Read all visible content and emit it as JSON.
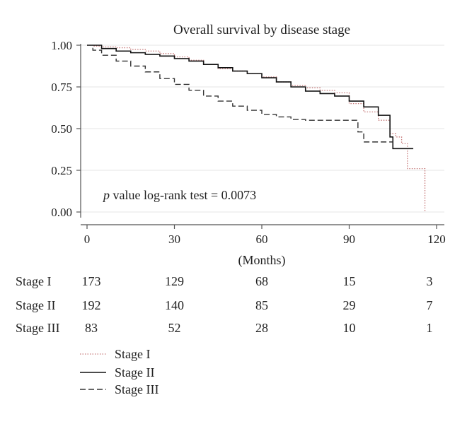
{
  "chart_data": {
    "type": "line",
    "title": "Overall survival by disease stage",
    "xlabel": "(Months)",
    "ylabel": "",
    "xlim": [
      0,
      120
    ],
    "ylim": [
      0,
      1
    ],
    "x_ticks": [
      "0",
      "30",
      "60",
      "90",
      "120"
    ],
    "y_ticks": [
      "0.00",
      "0.25",
      "0.50",
      "0.75",
      "1.00"
    ],
    "grid": true,
    "annotation": {
      "italic": "p",
      "text": " value log-rank test = 0.0073"
    },
    "colors": {
      "stage_i": "#c77a7a",
      "stage_ii": "#111111",
      "stage_iii": "#333333",
      "grid": "#e6e6e6",
      "axis": "#555555"
    },
    "series": [
      {
        "name": "Stage I",
        "style": "dotted",
        "x": [
          0,
          2,
          5,
          10,
          15,
          20,
          25,
          30,
          35,
          40,
          45,
          50,
          55,
          60,
          65,
          70,
          75,
          80,
          85,
          90,
          95,
          100,
          104,
          106,
          108,
          110,
          116,
          116
        ],
        "y": [
          1.0,
          0.995,
          0.99,
          0.985,
          0.975,
          0.965,
          0.95,
          0.93,
          0.91,
          0.885,
          0.86,
          0.845,
          0.83,
          0.81,
          0.78,
          0.76,
          0.745,
          0.73,
          0.715,
          0.65,
          0.6,
          0.55,
          0.47,
          0.45,
          0.41,
          0.26,
          0.26,
          0.0
        ]
      },
      {
        "name": "Stage II",
        "style": "solid",
        "x": [
          0,
          5,
          10,
          15,
          20,
          25,
          30,
          35,
          40,
          45,
          50,
          55,
          60,
          65,
          70,
          75,
          80,
          85,
          90,
          95,
          100,
          103,
          104,
          105,
          112
        ],
        "y": [
          1.0,
          0.98,
          0.965,
          0.955,
          0.945,
          0.935,
          0.92,
          0.905,
          0.885,
          0.865,
          0.845,
          0.83,
          0.805,
          0.78,
          0.75,
          0.725,
          0.71,
          0.695,
          0.665,
          0.63,
          0.58,
          0.58,
          0.45,
          0.38,
          0.38
        ]
      },
      {
        "name": "Stage III",
        "style": "dashed",
        "x": [
          0,
          2,
          5,
          10,
          15,
          20,
          25,
          30,
          35,
          40,
          45,
          50,
          55,
          60,
          65,
          70,
          75,
          80,
          85,
          90,
          93,
          95,
          105
        ],
        "y": [
          1.0,
          0.97,
          0.94,
          0.905,
          0.875,
          0.84,
          0.8,
          0.765,
          0.73,
          0.695,
          0.665,
          0.635,
          0.61,
          0.585,
          0.57,
          0.555,
          0.55,
          0.55,
          0.55,
          0.55,
          0.48,
          0.42,
          0.42
        ]
      }
    ],
    "risk_table": {
      "times": [
        0,
        30,
        60,
        90,
        120
      ],
      "rows": [
        {
          "label": "Stage I",
          "counts": [
            "173",
            "129",
            "68",
            "15",
            "3"
          ]
        },
        {
          "label": "Stage II",
          "counts": [
            "192",
            "140",
            "85",
            "29",
            "7"
          ]
        },
        {
          "label": "Stage III",
          "counts": [
            "83",
            "52",
            "28",
            "10",
            "1"
          ]
        }
      ]
    },
    "legend": {
      "position": "bottom-left",
      "entries": [
        "Stage I",
        "Stage II",
        "Stage III"
      ]
    }
  }
}
